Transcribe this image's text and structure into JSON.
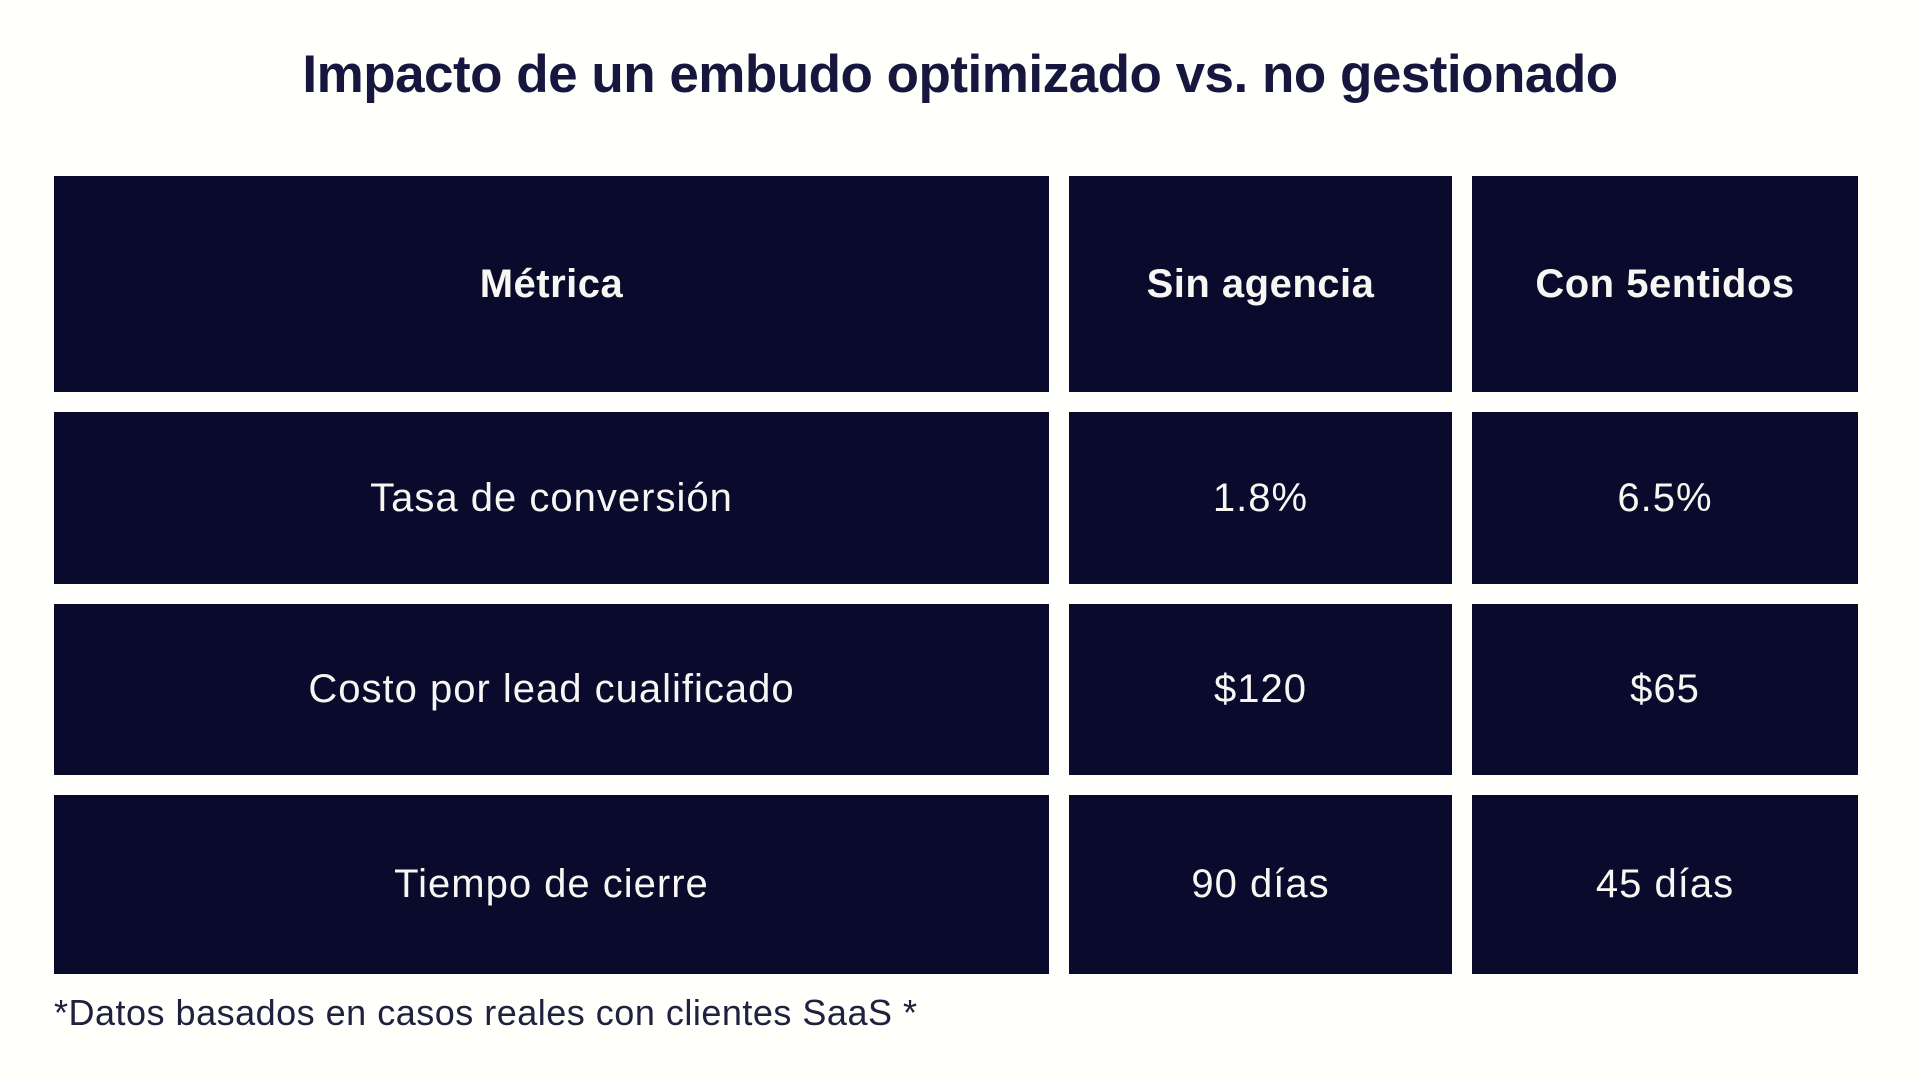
{
  "colors": {
    "page_background": "#fffffc",
    "cell_background": "#0a0a2d",
    "cell_text": "#f8f6f2",
    "title_text": "#16163f",
    "footnote_text": "#20203f"
  },
  "chart_data": {
    "type": "table",
    "title": "Impacto de un embudo optimizado vs. no gestionado",
    "columns": [
      "Métrica",
      "Sin agencia",
      "Con 5entidos"
    ],
    "rows": [
      [
        "Tasa de conversión",
        "1.8%",
        "6.5%"
      ],
      [
        "Costo por lead cualificado",
        "$120",
        "$65"
      ],
      [
        "Tiempo de cierre",
        "90 días",
        "45 días"
      ]
    ],
    "footnote": "*Datos basados en casos reales con clientes SaaS *",
    "layout": {
      "legend": "none",
      "grid": "off",
      "header_style": "bold dark-navy blocks with white text",
      "body_style": "light-weight white text on dark-navy blocks"
    }
  }
}
